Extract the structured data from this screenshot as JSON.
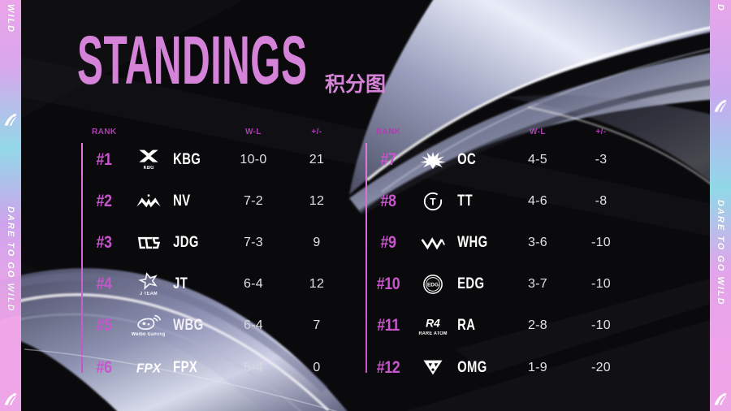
{
  "title": {
    "en": "STANDINGS",
    "zh": "积分图"
  },
  "side_banner": {
    "phrase": "DARE TO GO WILD",
    "partial_top_left": "WILD",
    "partial_top_right": "D",
    "icon": "wild-claw-icon"
  },
  "table_headers": {
    "rank": "RANK",
    "win_loss": "W-L",
    "plus_minus": "+/-"
  },
  "standings": {
    "left": [
      {
        "rank": "#1",
        "team": "KBG",
        "wl": "10-0",
        "pm": "21",
        "logo": "kbg-logo",
        "logo_caption": "KBG",
        "logo_letter": ""
      },
      {
        "rank": "#2",
        "team": "NV",
        "wl": "7-2",
        "pm": "12",
        "logo": "nv-logo",
        "logo_caption": "",
        "logo_letter": ""
      },
      {
        "rank": "#3",
        "team": "JDG",
        "wl": "7-3",
        "pm": "9",
        "logo": "jdg-logo",
        "logo_caption": "",
        "logo_letter": ""
      },
      {
        "rank": "#4",
        "team": "JT",
        "wl": "6-4",
        "pm": "12",
        "logo": "jt-logo",
        "logo_caption": "J TEAM",
        "logo_letter": ""
      },
      {
        "rank": "#5",
        "team": "WBG",
        "wl": "6-4",
        "pm": "7",
        "logo": "wbg-logo",
        "logo_caption": "Weibo Gaming",
        "logo_letter": ""
      },
      {
        "rank": "#6",
        "team": "FPX",
        "wl": "5-4",
        "pm": "0",
        "logo": "fpx-logo",
        "logo_caption": "",
        "logo_letter": "FPX"
      }
    ],
    "right": [
      {
        "rank": "#7",
        "team": "OC",
        "wl": "4-5",
        "pm": "-3",
        "logo": "oc-logo",
        "logo_caption": "",
        "logo_letter": ""
      },
      {
        "rank": "#8",
        "team": "TT",
        "wl": "4-6",
        "pm": "-8",
        "logo": "tt-logo",
        "logo_caption": "",
        "logo_letter": "T"
      },
      {
        "rank": "#9",
        "team": "WHG",
        "wl": "3-6",
        "pm": "-10",
        "logo": "whg-logo",
        "logo_caption": "",
        "logo_letter": ""
      },
      {
        "rank": "#10",
        "team": "EDG",
        "wl": "3-7",
        "pm": "-10",
        "logo": "edg-logo",
        "logo_caption": "",
        "logo_letter": "EDG"
      },
      {
        "rank": "#11",
        "team": "RA",
        "wl": "2-8",
        "pm": "-10",
        "logo": "ra-logo",
        "logo_caption": "RARE ATOM",
        "logo_letter": "R4"
      },
      {
        "rank": "#12",
        "team": "OMG",
        "wl": "1-9",
        "pm": "-20",
        "logo": "omg-logo",
        "logo_caption": "",
        "logo_letter": ""
      }
    ]
  },
  "colors": {
    "accent_pink": "#d583d8",
    "rank_magenta": "#c855cd",
    "header_magenta": "#b13cb5",
    "value_text": "#e2e2e5",
    "background": "#0a0a0c"
  }
}
